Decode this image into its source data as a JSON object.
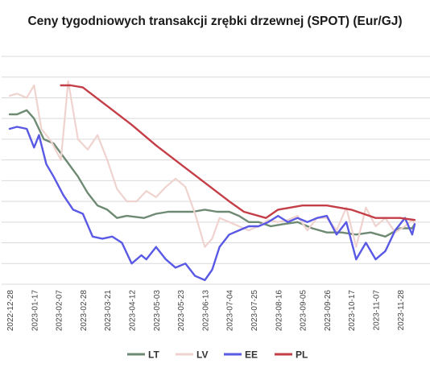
{
  "chart_data": {
    "type": "line",
    "title": "Ceny tygodniowych transakcji zrębki drzewnej (SPOT) (Eur/GJ)",
    "xlabel": "",
    "ylabel": "",
    "grid": true,
    "legend_position": "bottom",
    "x_tick_labels": [
      "2022-12-28",
      "2023-01-17",
      "2023-02-07",
      "2023-02-28",
      "2023-03-21",
      "2023-04-12",
      "2023-05-03",
      "2023-05-23",
      "2023-06-13",
      "2023-07-04",
      "2023-07-25",
      "2023-08-16",
      "2023-09-05",
      "2023-09-26",
      "2023-10-17",
      "2023-11-07",
      "2023-11-28"
    ],
    "y_range_index": [
      0,
      11
    ],
    "series": [
      {
        "name": "LT",
        "color": "#6e8a73",
        "x": [
          0,
          0.3,
          0.7,
          1,
          1.4,
          1.8,
          2.3,
          2.8,
          3.2,
          3.6,
          4,
          4.4,
          4.8,
          5.5,
          6,
          6.5,
          7,
          7.5,
          8,
          8.5,
          9,
          9.4,
          9.8,
          10.2,
          10.7,
          11.2,
          11.8,
          12.4,
          13,
          13.6,
          14.2,
          14.8,
          15.4,
          16,
          16.5,
          16.6
        ],
        "y": [
          8.2,
          8.2,
          8.4,
          8.0,
          7.0,
          6.8,
          6.0,
          5.2,
          4.4,
          3.8,
          3.6,
          3.2,
          3.3,
          3.2,
          3.4,
          3.5,
          3.5,
          3.5,
          3.6,
          3.5,
          3.5,
          3.3,
          3.0,
          3.0,
          2.8,
          2.9,
          3.0,
          2.7,
          2.5,
          2.5,
          2.4,
          2.5,
          2.3,
          2.7,
          2.7,
          2.9
        ]
      },
      {
        "name": "LV",
        "color": "#efd3cf",
        "x": [
          0,
          0.3,
          0.7,
          1,
          1.3,
          1.7,
          2.1,
          2.4,
          2.8,
          3.2,
          3.6,
          4,
          4.4,
          4.8,
          5.2,
          5.6,
          6,
          6.4,
          6.8,
          7.2,
          7.6,
          8,
          8.3,
          8.6,
          9,
          9.4,
          9.8,
          10.2,
          10.6,
          11,
          11.4,
          11.8,
          12.2,
          12.6,
          13,
          13.4,
          13.8,
          14.2,
          14.6,
          15,
          15.4,
          15.8,
          16.2,
          16.5,
          16.6
        ],
        "y": [
          9.1,
          9.2,
          9.0,
          9.6,
          7.5,
          6.9,
          6.0,
          9.8,
          7.0,
          6.5,
          7.2,
          6.0,
          4.6,
          4.0,
          4.0,
          4.5,
          4.2,
          4.7,
          5.1,
          4.7,
          3.4,
          1.8,
          2.2,
          3.2,
          3.0,
          2.8,
          2.6,
          2.8,
          3.1,
          3.0,
          3.1,
          3.3,
          2.6,
          3.2,
          3.2,
          2.6,
          3.7,
          1.8,
          3.7,
          2.8,
          3.2,
          2.5,
          2.8,
          3.1,
          2.9
        ]
      },
      {
        "name": "EE",
        "color": "#5959e6",
        "x": [
          0,
          0.3,
          0.7,
          1,
          1.2,
          1.5,
          1.8,
          2.2,
          2.6,
          3,
          3.4,
          3.8,
          4.2,
          4.6,
          5,
          5.4,
          5.6,
          6,
          6.4,
          6.8,
          7.2,
          7.6,
          8,
          8.3,
          8.6,
          9,
          9.4,
          9.8,
          10.2,
          10.6,
          11,
          11.4,
          11.8,
          12.2,
          12.6,
          13,
          13.4,
          13.8,
          14.2,
          14.6,
          15,
          15.4,
          15.8,
          16.2,
          16.5,
          16.6
        ],
        "y": [
          7.5,
          7.6,
          7.5,
          6.6,
          7.2,
          5.8,
          5.2,
          4.3,
          3.6,
          3.4,
          2.3,
          2.2,
          2.3,
          2.0,
          1.0,
          1.4,
          1.2,
          1.8,
          1.2,
          0.8,
          1.0,
          0.4,
          0.2,
          0.7,
          1.8,
          2.4,
          2.6,
          2.8,
          2.8,
          3.0,
          3.3,
          3.0,
          3.2,
          3.0,
          3.2,
          3.3,
          2.4,
          3.0,
          1.2,
          2.0,
          1.2,
          1.6,
          2.6,
          3.2,
          2.4,
          2.9
        ]
      },
      {
        "name": "PL",
        "color": "#c43e48",
        "x": [
          2.1,
          2.5,
          3,
          4,
          5,
          6,
          7,
          8,
          9,
          9.6,
          10.5,
          11,
          12,
          13,
          14,
          15,
          16,
          16.6
        ],
        "y": [
          9.6,
          9.6,
          9.5,
          8.6,
          7.7,
          6.7,
          5.8,
          4.9,
          4.0,
          3.5,
          3.2,
          3.6,
          3.8,
          3.8,
          3.6,
          3.2,
          3.2,
          3.1
        ]
      }
    ]
  }
}
